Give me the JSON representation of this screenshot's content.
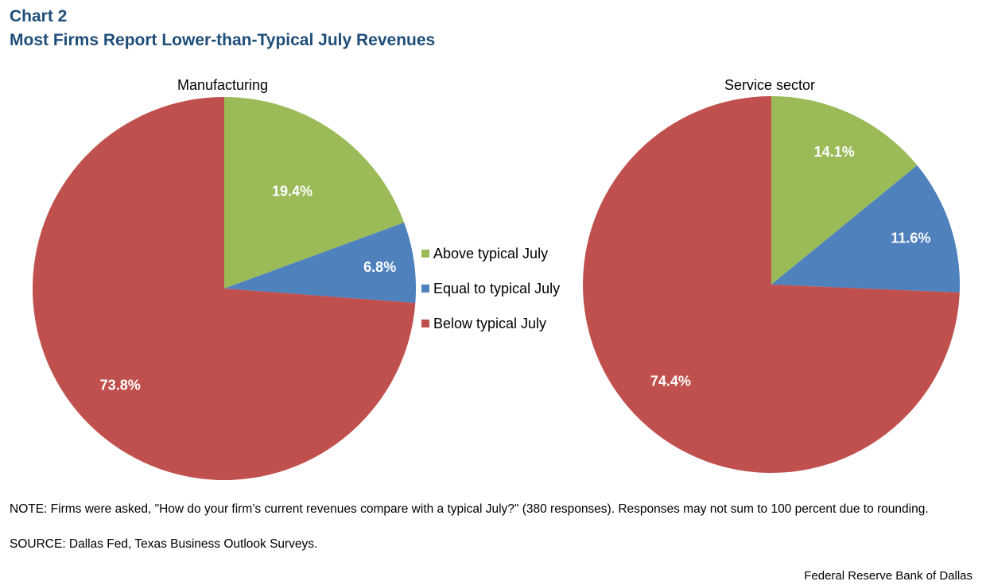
{
  "header": {
    "chart_label": "Chart 2",
    "title": "Most Firms Report Lower-than-Typical July Revenues"
  },
  "colors": {
    "above": "#9bbb59",
    "equal": "#4f81bd",
    "below": "#c0504d",
    "title": "#1f4e79"
  },
  "chart_data": [
    {
      "type": "pie",
      "title": "Manufacturing",
      "categories": [
        "Above typical July",
        "Equal to typical July",
        "Below typical July"
      ],
      "values": [
        19.4,
        6.8,
        73.8
      ],
      "labels": [
        "19.4%",
        "6.8%",
        "73.8%"
      ]
    },
    {
      "type": "pie",
      "title": "Service sector",
      "categories": [
        "Above typical July",
        "Equal to typical July",
        "Below typical July"
      ],
      "values": [
        14.1,
        11.6,
        74.4
      ],
      "labels": [
        "14.1%",
        "11.6%",
        "74.4%"
      ]
    }
  ],
  "legend": {
    "items": [
      "Above typical July",
      "Equal to typical July",
      "Below typical July"
    ]
  },
  "footer": {
    "note": "NOTE: Firms were asked, \"How do your firm’s current revenues compare with a typical July?\" (380 responses). Responses may not sum to 100 percent due to rounding.",
    "source": "SOURCE: Dallas Fed, Texas Business Outlook Surveys.",
    "credit": "Federal Reserve Bank of Dallas"
  }
}
